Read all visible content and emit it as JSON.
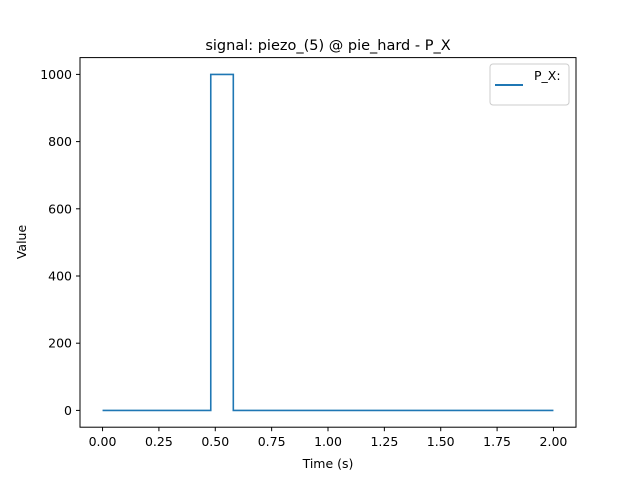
{
  "chart_data": {
    "type": "line",
    "title": "signal: piezo_(5) @ pie_hard - P_X",
    "xlabel": "Time (s)",
    "ylabel": "Value",
    "xlim": [
      0.0,
      2.0
    ],
    "ylim": [
      0,
      1000
    ],
    "x_ticks": [
      "0.00",
      "0.25",
      "0.50",
      "0.75",
      "1.00",
      "1.25",
      "1.50",
      "1.75",
      "2.00"
    ],
    "y_ticks": [
      "0",
      "200",
      "400",
      "600",
      "800",
      "1000"
    ],
    "grid": false,
    "legend_position": "top-right",
    "series": [
      {
        "name": "P_X:",
        "color": "#1f77b4",
        "x": [
          0.0,
          0.48,
          0.48,
          0.58,
          0.58,
          2.0
        ],
        "y": [
          0,
          0,
          1000,
          1000,
          0,
          0
        ]
      }
    ]
  }
}
